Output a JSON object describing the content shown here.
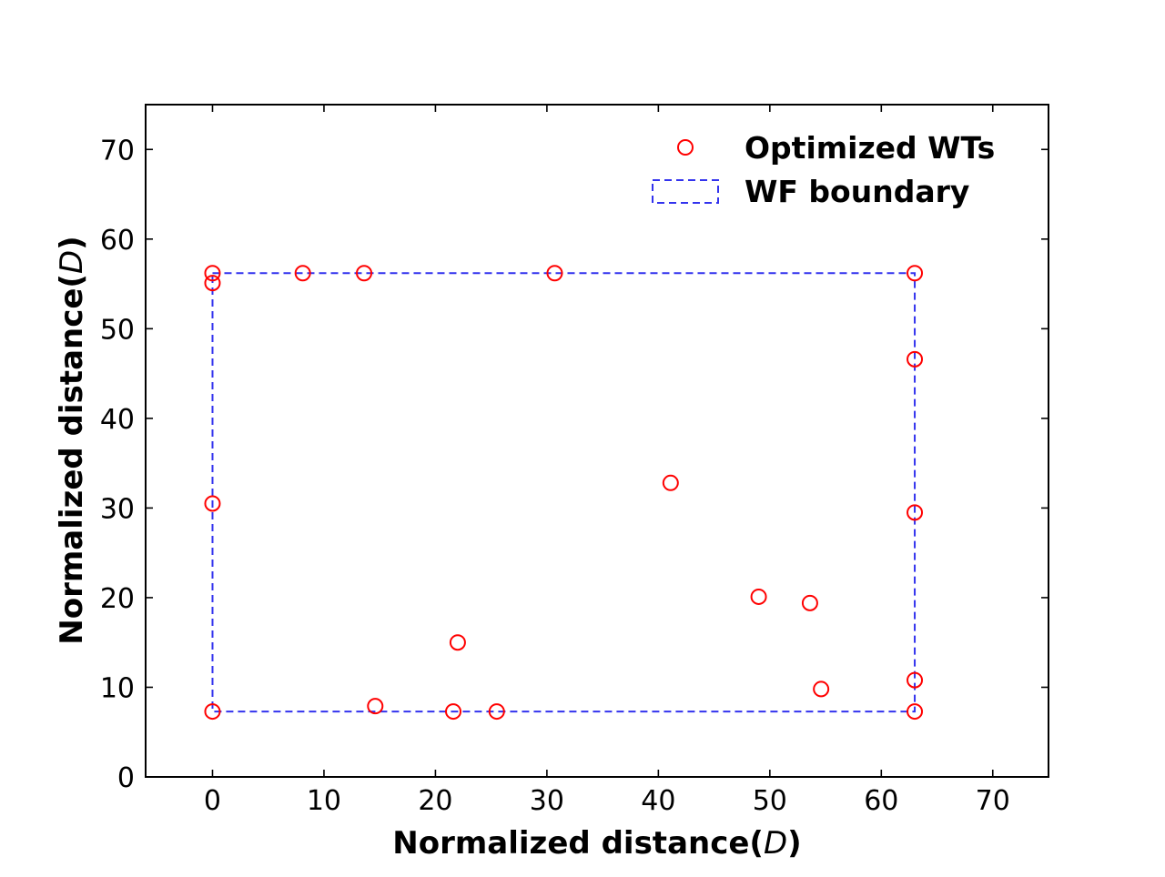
{
  "chart_data": {
    "type": "scatter",
    "title": "",
    "xlabel": "Normalized distance(",
    "xlabel_italic": "D",
    "xlabel_end": ")",
    "ylabel": "Normalized distance(",
    "ylabel_italic": "D",
    "ylabel_end": ")",
    "xlim": [
      -6,
      75
    ],
    "ylim": [
      0,
      75
    ],
    "xticks": [
      0,
      10,
      20,
      30,
      40,
      50,
      60,
      70
    ],
    "yticks": [
      0,
      10,
      20,
      30,
      40,
      50,
      60,
      70
    ],
    "grid": false,
    "legend": {
      "placement": "top-right",
      "entries": [
        "Optimized WTs",
        "WF boundary"
      ]
    },
    "series": [
      {
        "name": "Optimized WTs",
        "marker": "open-circle",
        "color": "#ff0000",
        "points": [
          [
            0,
            56.2
          ],
          [
            0,
            55.1
          ],
          [
            8.1,
            56.2
          ],
          [
            13.6,
            56.2
          ],
          [
            30.7,
            56.2
          ],
          [
            63.0,
            56.2
          ],
          [
            63.0,
            46.6
          ],
          [
            0,
            30.5
          ],
          [
            41.1,
            32.8
          ],
          [
            63.0,
            29.5
          ],
          [
            49.0,
            20.1
          ],
          [
            53.6,
            19.4
          ],
          [
            22.0,
            15.0
          ],
          [
            54.6,
            9.8
          ],
          [
            63.0,
            10.8
          ],
          [
            14.6,
            7.9
          ],
          [
            0,
            7.3
          ],
          [
            21.6,
            7.3
          ],
          [
            25.5,
            7.3
          ],
          [
            63.0,
            7.3
          ]
        ]
      },
      {
        "name": "WF boundary",
        "style": "dashed-rectangle",
        "color": "#3333ee",
        "rect": {
          "x_min": 0,
          "x_max": 63.0,
          "y_min": 7.3,
          "y_max": 56.2
        }
      }
    ]
  }
}
